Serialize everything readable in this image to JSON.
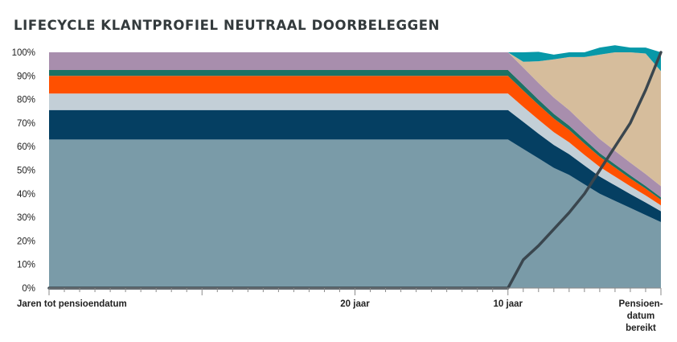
{
  "chart_data": {
    "type": "area",
    "title": "LIFECYCLE KLANTPROFIEL NEUTRAAL DOORBELEGGEN",
    "x_direction": "years until retirement date, decreasing left to right",
    "xlim": [
      40,
      0
    ],
    "ylim": [
      0,
      100
    ],
    "y_ticks": [
      "0%",
      "10%",
      "20%",
      "30%",
      "40%",
      "50%",
      "60%",
      "70%",
      "80%",
      "90%",
      "100%"
    ],
    "x_tick_labels": [
      {
        "x": 40,
        "label": "Jaren tot pensioendatum"
      },
      {
        "x": 20,
        "label": "20 jaar"
      },
      {
        "x": 10,
        "label": "10 jaar"
      },
      {
        "x": 0,
        "label": "Pensioen-",
        "label_2": "datum",
        "label_3": "bereikt"
      }
    ],
    "grid": false,
    "legend": "none",
    "x": [
      40,
      30,
      10,
      9,
      8,
      7,
      6,
      5,
      4,
      3,
      2,
      1,
      0
    ],
    "series": [
      {
        "color": "#7a9ba8",
        "values": [
          63,
          63,
          63,
          59,
          55,
          51,
          48,
          44,
          40,
          37,
          34,
          31,
          28
        ]
      },
      {
        "color": "#053f62",
        "values": [
          12.5,
          12.5,
          12.5,
          11.5,
          10.5,
          9.7,
          8.8,
          8,
          7.3,
          6.6,
          5.9,
          5.3,
          4.6
        ]
      },
      {
        "color": "#c3cfd7",
        "values": [
          7,
          7,
          7,
          6.4,
          5.9,
          5.4,
          5,
          4.5,
          4.1,
          3.7,
          3.3,
          3,
          2.5
        ]
      },
      {
        "color": "#ff5000",
        "values": [
          7.5,
          7.5,
          7.5,
          6.9,
          6.3,
          5.8,
          5.3,
          4.8,
          4.3,
          3.8,
          3.3,
          2.9,
          2.4
        ]
      },
      {
        "color": "#1d7264",
        "values": [
          2.5,
          2.5,
          2.5,
          2.4,
          2.2,
          2,
          1.8,
          1.7,
          1.5,
          1.4,
          1.3,
          1.1,
          1
        ]
      },
      {
        "color": "#a88ead",
        "values": [
          7.5,
          7.5,
          7.5,
          7.3,
          7.1,
          6.9,
          6.6,
          6.3,
          6,
          5.7,
          5.4,
          5.1,
          4.7
        ]
      },
      {
        "color": "#d6bd9c",
        "values": [
          0,
          0,
          0,
          2.5,
          9.2,
          16.2,
          22.5,
          28.7,
          35.8,
          41.8,
          46.8,
          51.1,
          48.8
        ]
      },
      {
        "color": "#0798a8",
        "values": [
          0,
          0,
          0,
          4,
          4,
          2,
          2,
          2,
          3,
          3,
          2,
          2.5,
          8
        ]
      }
    ],
    "line": {
      "color": "#3a464e",
      "x": [
        40,
        10,
        9,
        8,
        7,
        6,
        5,
        4,
        3,
        2,
        1,
        0
      ],
      "values": [
        0,
        0,
        12,
        18,
        25,
        32,
        40,
        50,
        60,
        70,
        84,
        100
      ]
    }
  }
}
